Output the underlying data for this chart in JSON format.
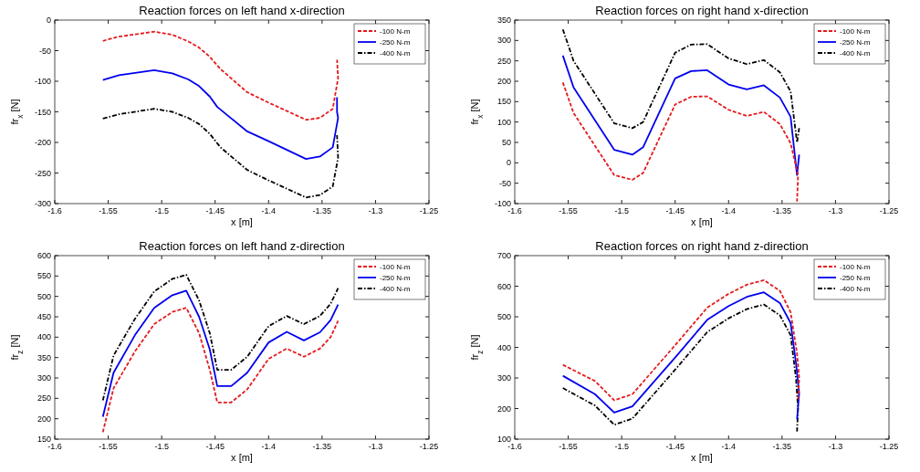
{
  "chart_data": [
    {
      "type": "line",
      "title": "Reaction forces on left hand x-direction",
      "xlabel": "x [m]",
      "ylabel": "fr$_{x}$ [N]",
      "xlim": [
        -1.6,
        -1.25
      ],
      "xticks": [
        -1.6,
        -1.55,
        -1.5,
        -1.45,
        -1.4,
        -1.35,
        -1.3,
        -1.25
      ],
      "ylim": [
        -300,
        0
      ],
      "yticks": [
        -300,
        -250,
        -200,
        -150,
        -100,
        -50,
        0
      ],
      "grid": false,
      "legend": "top right",
      "marker": "none",
      "series": [
        {
          "name": "-100 N-m",
          "color": "#e41a1c",
          "line_style": "dashed",
          "x": [
            -1.555,
            -1.54,
            -1.507,
            -1.49,
            -1.475,
            -1.465,
            -1.455,
            -1.445,
            -1.42,
            -1.4,
            -1.365,
            -1.352,
            -1.34,
            -1.335,
            -1.336
          ],
          "values": [
            -34,
            -27,
            -19,
            -24,
            -35,
            -45,
            -60,
            -80,
            -118,
            -135,
            -163,
            -160,
            -145,
            -95,
            -65
          ]
        },
        {
          "name": "-250 N-m",
          "color": "#0000ee",
          "line_style": "solid",
          "x": [
            -1.555,
            -1.54,
            -1.507,
            -1.49,
            -1.475,
            -1.465,
            -1.455,
            -1.448,
            -1.42,
            -1.4,
            -1.365,
            -1.352,
            -1.34,
            -1.335,
            -1.336,
            -1.336
          ],
          "values": [
            -98,
            -90,
            -82,
            -87,
            -97,
            -108,
            -125,
            -142,
            -182,
            -198,
            -227,
            -223,
            -208,
            -160,
            -150,
            -126
          ]
        },
        {
          "name": "-400 N-m",
          "color": "#000000",
          "line_style": "dashdot",
          "x": [
            -1.555,
            -1.54,
            -1.507,
            -1.49,
            -1.475,
            -1.465,
            -1.455,
            -1.445,
            -1.42,
            -1.4,
            -1.365,
            -1.352,
            -1.34,
            -1.335,
            -1.336
          ],
          "values": [
            -161,
            -154,
            -145,
            -150,
            -160,
            -170,
            -186,
            -208,
            -245,
            -262,
            -290,
            -286,
            -272,
            -225,
            -188
          ]
        }
      ]
    },
    {
      "type": "line",
      "title": "Reaction forces on right hand x-direction",
      "xlabel": "x [m]",
      "ylabel": "fr$_{x}$ [N]",
      "xlim": [
        -1.6,
        -1.25
      ],
      "xticks": [
        -1.6,
        -1.55,
        -1.5,
        -1.45,
        -1.4,
        -1.35,
        -1.3,
        -1.25
      ],
      "ylim": [
        -100,
        350
      ],
      "yticks": [
        -100,
        -50,
        0,
        50,
        100,
        150,
        200,
        250,
        300,
        350
      ],
      "grid": false,
      "legend": "top right",
      "marker": "none",
      "series": [
        {
          "name": "-100 N-m",
          "color": "#e41a1c",
          "line_style": "dashed",
          "x": [
            -1.555,
            -1.545,
            -1.507,
            -1.49,
            -1.48,
            -1.45,
            -1.435,
            -1.42,
            -1.4,
            -1.383,
            -1.367,
            -1.352,
            -1.342,
            -1.335,
            -1.336
          ],
          "values": [
            197,
            122,
            -30,
            -42,
            -25,
            143,
            162,
            163,
            130,
            115,
            125,
            95,
            48,
            -30,
            -95
          ]
        },
        {
          "name": "-250 N-m",
          "color": "#0000ee",
          "line_style": "solid",
          "x": [
            -1.555,
            -1.545,
            -1.507,
            -1.49,
            -1.48,
            -1.45,
            -1.435,
            -1.42,
            -1.4,
            -1.383,
            -1.367,
            -1.352,
            -1.342,
            -1.336,
            -1.334
          ],
          "values": [
            263,
            185,
            32,
            20,
            38,
            207,
            225,
            227,
            192,
            180,
            190,
            160,
            113,
            -30,
            20
          ]
        },
        {
          "name": "-400 N-m",
          "color": "#000000",
          "line_style": "dashdot",
          "x": [
            -1.555,
            -1.545,
            -1.507,
            -1.49,
            -1.48,
            -1.45,
            -1.435,
            -1.42,
            -1.4,
            -1.383,
            -1.367,
            -1.352,
            -1.342,
            -1.336,
            -1.334
          ],
          "values": [
            327,
            250,
            97,
            85,
            100,
            270,
            290,
            291,
            256,
            242,
            252,
            222,
            175,
            50,
            85
          ]
        }
      ]
    },
    {
      "type": "line",
      "title": "Reaction forces on left hand z-direction",
      "xlabel": "x [m]",
      "ylabel": "fr$_{z}$ [N]",
      "xlim": [
        -1.6,
        -1.25
      ],
      "xticks": [
        -1.6,
        -1.55,
        -1.5,
        -1.45,
        -1.4,
        -1.35,
        -1.3,
        -1.25
      ],
      "ylim": [
        150,
        600
      ],
      "yticks": [
        150,
        200,
        250,
        300,
        350,
        400,
        450,
        500,
        550,
        600
      ],
      "grid": false,
      "legend": "top right",
      "marker": "none",
      "series": [
        {
          "name": "-100 N-m",
          "color": "#e41a1c",
          "line_style": "dashed",
          "x": [
            -1.555,
            -1.545,
            -1.525,
            -1.507,
            -1.49,
            -1.477,
            -1.465,
            -1.455,
            -1.448,
            -1.435,
            -1.42,
            -1.4,
            -1.383,
            -1.367,
            -1.352,
            -1.342,
            -1.335
          ],
          "values": [
            167,
            275,
            365,
            432,
            462,
            472,
            410,
            320,
            240,
            240,
            272,
            347,
            372,
            352,
            372,
            400,
            440
          ]
        },
        {
          "name": "-250 N-m",
          "color": "#0000ee",
          "line_style": "solid",
          "x": [
            -1.555,
            -1.545,
            -1.525,
            -1.507,
            -1.49,
            -1.477,
            -1.465,
            -1.455,
            -1.448,
            -1.435,
            -1.42,
            -1.4,
            -1.383,
            -1.367,
            -1.352,
            -1.342,
            -1.335
          ],
          "values": [
            205,
            313,
            405,
            472,
            503,
            514,
            450,
            370,
            280,
            280,
            313,
            387,
            413,
            392,
            412,
            442,
            480
          ]
        },
        {
          "name": "-400 N-m",
          "color": "#000000",
          "line_style": "dashdot",
          "x": [
            -1.555,
            -1.545,
            -1.525,
            -1.507,
            -1.49,
            -1.477,
            -1.465,
            -1.455,
            -1.448,
            -1.435,
            -1.42,
            -1.4,
            -1.383,
            -1.367,
            -1.352,
            -1.342,
            -1.335
          ],
          "values": [
            245,
            355,
            445,
            512,
            543,
            553,
            490,
            410,
            320,
            320,
            352,
            427,
            452,
            432,
            452,
            482,
            520
          ]
        }
      ]
    },
    {
      "type": "line",
      "title": "Reaction forces on right hand z-direction",
      "xlabel": "x [m]",
      "ylabel": "fr$_{z}$ [N]",
      "xlim": [
        -1.6,
        -1.25
      ],
      "xticks": [
        -1.6,
        -1.55,
        -1.5,
        -1.45,
        -1.4,
        -1.35,
        -1.3,
        -1.25
      ],
      "ylim": [
        100,
        700
      ],
      "yticks": [
        100,
        200,
        300,
        400,
        500,
        600,
        700
      ],
      "grid": false,
      "legend": "top right",
      "marker": "none",
      "series": [
        {
          "name": "-100 N-m",
          "color": "#e41a1c",
          "line_style": "dashed",
          "x": [
            -1.555,
            -1.525,
            -1.507,
            -1.49,
            -1.45,
            -1.42,
            -1.4,
            -1.383,
            -1.367,
            -1.352,
            -1.342,
            -1.336,
            -1.334,
            -1.335
          ],
          "values": [
            343,
            290,
            227,
            247,
            407,
            530,
            575,
            605,
            620,
            585,
            515,
            380,
            300,
            230
          ]
        },
        {
          "name": "-250 N-m",
          "color": "#0000ee",
          "line_style": "solid",
          "x": [
            -1.555,
            -1.525,
            -1.507,
            -1.49,
            -1.45,
            -1.42,
            -1.4,
            -1.383,
            -1.367,
            -1.352,
            -1.342,
            -1.337,
            -1.334,
            -1.336
          ],
          "values": [
            307,
            247,
            187,
            207,
            367,
            490,
            535,
            565,
            580,
            545,
            480,
            350,
            250,
            165
          ]
        },
        {
          "name": "-400 N-m",
          "color": "#000000",
          "line_style": "dashdot",
          "x": [
            -1.555,
            -1.525,
            -1.507,
            -1.49,
            -1.45,
            -1.42,
            -1.4,
            -1.383,
            -1.367,
            -1.352,
            -1.342,
            -1.337,
            -1.335,
            -1.336
          ],
          "values": [
            267,
            210,
            147,
            167,
            327,
            450,
            495,
            525,
            540,
            505,
            440,
            300,
            200,
            125
          ]
        }
      ]
    }
  ]
}
